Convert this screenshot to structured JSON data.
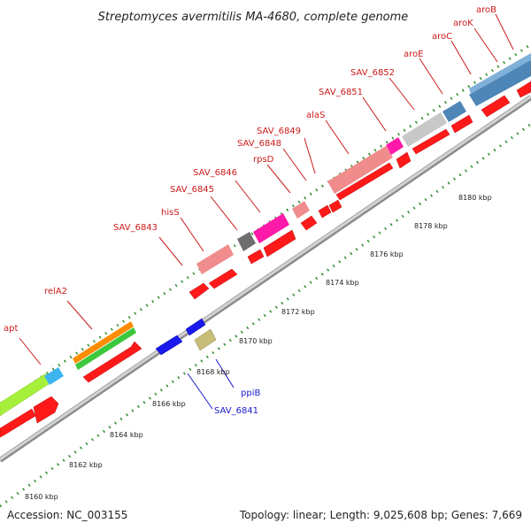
{
  "title": "Streptomyces avermitilis MA-4680, complete genome",
  "footer": {
    "accession": "Accession: NC_003155",
    "topology": "Topology: linear; Length: 9,025,608 bp; Genes: 7,669"
  },
  "colors": {
    "gene_red": "#ff1a1a",
    "label_red": "#cc1a1a",
    "label_blue": "#1a1acc",
    "tick_green": "#2e8b2e",
    "axis_gray": "#b4b4b4",
    "pink": "#f08c8c",
    "magenta": "#ff1aaa",
    "steelblue": "#4f86b8",
    "lightgray": "#c8c8c8",
    "darkgray": "#6e6e6e",
    "orange": "#ff8c00",
    "green": "#3cc83c",
    "lime": "#a6f03c",
    "cyan": "#3cb4f0",
    "blue": "#1a1aee",
    "khaki": "#c8be78"
  },
  "scale_ticks": [
    {
      "label": "8160 kbp"
    },
    {
      "label": "8162 kbp"
    },
    {
      "label": "8164 kbp"
    },
    {
      "label": "8166 kbp"
    },
    {
      "label": "8168 kbp"
    },
    {
      "label": "8170 kbp"
    },
    {
      "label": "8172 kbp"
    },
    {
      "label": "8174 kbp"
    },
    {
      "label": "8176 kbp"
    },
    {
      "label": "8178 kbp"
    },
    {
      "label": "8180 kbp"
    }
  ],
  "gene_labels": [
    {
      "name": "apt",
      "color": "red"
    },
    {
      "name": "relA2",
      "color": "red"
    },
    {
      "name": "SAV_6843",
      "color": "red"
    },
    {
      "name": "hisS",
      "color": "red"
    },
    {
      "name": "SAV_6845",
      "color": "red"
    },
    {
      "name": "SAV_6846",
      "color": "red"
    },
    {
      "name": "rpsD",
      "color": "red"
    },
    {
      "name": "SAV_6848",
      "color": "red"
    },
    {
      "name": "SAV_6849",
      "color": "red"
    },
    {
      "name": "alaS",
      "color": "red"
    },
    {
      "name": "SAV_6851",
      "color": "red"
    },
    {
      "name": "SAV_6852",
      "color": "red"
    },
    {
      "name": "aroE",
      "color": "red"
    },
    {
      "name": "aroC",
      "color": "red"
    },
    {
      "name": "aroK",
      "color": "red"
    },
    {
      "name": "aroB",
      "color": "red"
    },
    {
      "name": "ppiB",
      "color": "blue"
    },
    {
      "name": "SAV_6841",
      "color": "blue"
    }
  ]
}
